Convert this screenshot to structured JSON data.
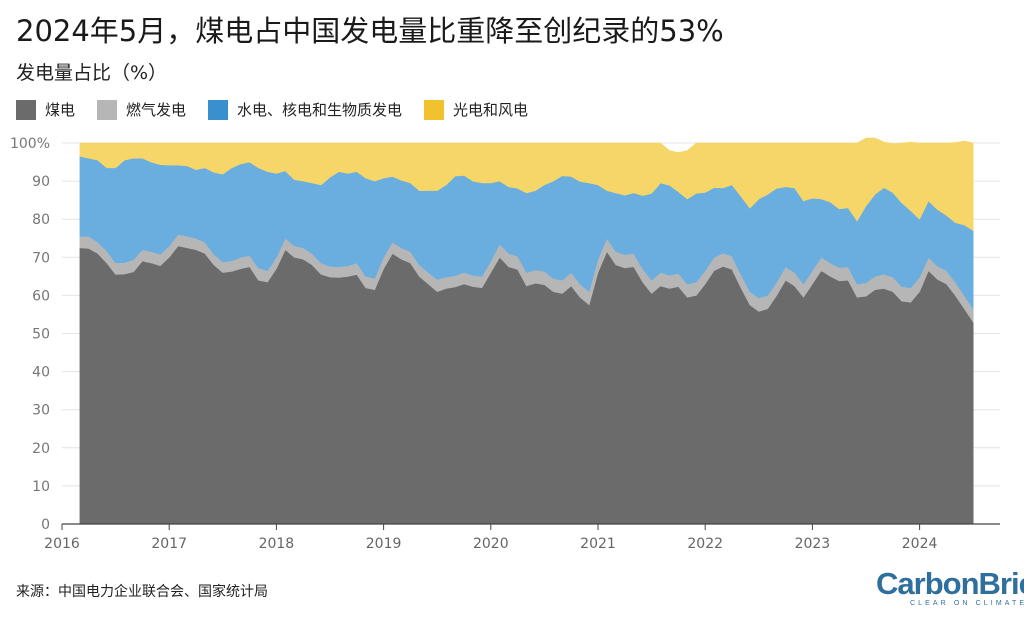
{
  "title": "2024年5月，煤电占中国发电量比重降至创纪录的53%",
  "subtitle": "发电量占比（%）",
  "source": "来源：中国电力企业联合会、国家统计局",
  "logo": {
    "main": "CarbonBrief",
    "tagline": "CLEAR ON CLIMATE"
  },
  "legend": [
    {
      "label": "煤电",
      "color": "#6b6b6b"
    },
    {
      "label": "燃气发电",
      "color": "#b6b6b6"
    },
    {
      "label": "水电、核电和生物质发电",
      "color": "#6aaedf"
    },
    {
      "label": "光电和风电",
      "color": "#f6d668"
    }
  ],
  "chart_data": {
    "type": "area",
    "stacked": true,
    "ylabel": "发电量占比（%）",
    "ylim": [
      0,
      100
    ],
    "yticks": [
      0,
      10,
      20,
      30,
      40,
      50,
      60,
      70,
      80,
      90,
      100
    ],
    "ytick_labels": [
      "0",
      "10",
      "20",
      "30",
      "40",
      "50",
      "60",
      "70",
      "80",
      "90",
      "100%"
    ],
    "xlim": [
      2016,
      2024.75
    ],
    "xticks": [
      2016,
      2017,
      2018,
      2019,
      2020,
      2021,
      2022,
      2023,
      2024
    ],
    "grid": true,
    "legend_position": "top-left",
    "x_start": "2016-03",
    "x_end": "2024-05",
    "x_step": "month",
    "series": [
      {
        "name": "煤电",
        "color": "#6b6b6b",
        "values": [
          72.5,
          72.3,
          71,
          68.5,
          65.5,
          65.6,
          66.2,
          69,
          68.5,
          67.8,
          70,
          73,
          72.5,
          72,
          71,
          68,
          66,
          66.3,
          67,
          67.5,
          64,
          63.5,
          67,
          72,
          70,
          69.5,
          68,
          65.5,
          64.8,
          64.7,
          65,
          65.5,
          62,
          61.5,
          67,
          71,
          69.5,
          68.5,
          65,
          63,
          61,
          61.8,
          62.2,
          63,
          62.3,
          62,
          66,
          70,
          67.5,
          66.8,
          62.5,
          63.2,
          62.8,
          61,
          60.5,
          62.5,
          59.5,
          57.5,
          66,
          71.5,
          68,
          67.2,
          67.5,
          63.5,
          60.5,
          62.5,
          61.8,
          62.3,
          59.5,
          60,
          63,
          66.5,
          67.6,
          66.8,
          62,
          57.5,
          55.8,
          56.5,
          60,
          64,
          62.5,
          59.5,
          63,
          66.5,
          65,
          63.8,
          64,
          59.5,
          59.8,
          61.5,
          61.8,
          61,
          58.5,
          58.2,
          61,
          66.5,
          64.2,
          63,
          60,
          56.5,
          53
        ]
      },
      {
        "name": "燃气发电",
        "color": "#b6b6b6",
        "values": [
          3,
          3.2,
          3,
          3.2,
          3,
          3,
          3.2,
          3,
          3,
          3,
          3,
          3,
          3,
          3,
          3,
          2.8,
          2.8,
          2.8,
          3,
          3,
          3.2,
          3,
          3,
          3,
          3,
          3,
          3,
          3,
          2.8,
          2.8,
          2.8,
          3,
          3,
          3,
          3,
          3,
          3,
          3,
          3,
          3,
          3.2,
          3,
          3,
          3,
          3,
          3,
          3,
          3.5,
          3.5,
          3.5,
          3.5,
          3.5,
          3.5,
          3.5,
          3.5,
          3.5,
          3.5,
          3.5,
          3.5,
          3.5,
          3.5,
          3.5,
          3.5,
          3.5,
          3.5,
          3.5,
          3.5,
          3.5,
          3.5,
          3.5,
          3.5,
          3.5,
          3.5,
          3.5,
          3.5,
          3.5,
          3.5,
          3.5,
          3.5,
          3.5,
          3.5,
          3.5,
          3.5,
          3.5,
          3.5,
          3.5,
          3.5,
          3.5,
          3.5,
          3.5,
          3.8,
          3.8,
          3.8,
          3.8,
          3.8,
          3.5,
          3.5,
          3.5,
          3.5,
          3.5,
          3.5
        ]
      },
      {
        "name": "水电、核电和生物质发电",
        "color": "#6aaedf",
        "values": [
          21,
          20.5,
          21.5,
          21.8,
          25,
          26.9,
          26.6,
          24,
          23.5,
          23.5,
          21.2,
          18.2,
          18.5,
          18,
          19.5,
          21.5,
          23,
          24.4,
          24.5,
          24.5,
          26.3,
          26,
          22,
          17.7,
          17.4,
          17.5,
          18.5,
          20.5,
          23.4,
          25,
          24.2,
          24,
          25.8,
          25.5,
          20.8,
          17.2,
          17.7,
          18,
          19.5,
          21.5,
          23.3,
          24.2,
          26.1,
          25.5,
          24.7,
          24.5,
          20.5,
          16.5,
          17.5,
          17.8,
          20.9,
          20.8,
          22.7,
          25.5,
          27.4,
          25.2,
          26.9,
          28.5,
          19.5,
          12.5,
          15.4,
          15.6,
          15.9,
          19.2,
          22.8,
          23.5,
          23.6,
          21.4,
          22.3,
          23.3,
          20.5,
          18.3,
          17.1,
          18.7,
          20.5,
          21.9,
          26,
          26.5,
          24.6,
          21,
          22.2,
          21.8,
          19,
          15.3,
          16,
          15.4,
          15.5,
          16.5,
          20.2,
          21.5,
          22.7,
          22.2,
          22,
          20.2,
          15.2,
          14.8,
          14.8,
          14.5,
          15.6,
          18.5,
          20.5
        ]
      },
      {
        "name": "光电和风电",
        "color": "#f6d668",
        "values": [
          3.5,
          4,
          4.5,
          6.5,
          6.5,
          4.5,
          4,
          4,
          5,
          5.7,
          5.8,
          5.8,
          6,
          7,
          6.5,
          7.7,
          8.2,
          6.5,
          5.5,
          5,
          6.5,
          7.5,
          8,
          7.3,
          9.6,
          10,
          10.5,
          11,
          9,
          7.5,
          8,
          7.5,
          9.2,
          10,
          9.2,
          8.8,
          9.8,
          10.5,
          12.5,
          12.5,
          12.5,
          11,
          8.7,
          8.5,
          10,
          10.5,
          10.5,
          10,
          11.5,
          11.9,
          13.1,
          12.5,
          11,
          10,
          8.6,
          8.8,
          10.1,
          10.5,
          11,
          12.5,
          13.1,
          13.7,
          13.1,
          13.8,
          13.2,
          10.5,
          9.1,
          10.3,
          12.7,
          13.2,
          13,
          11.7,
          11.8,
          11,
          14,
          17.1,
          14.7,
          13.5,
          11.9,
          11.5,
          11.8,
          15.2,
          14.5,
          14.7,
          15.5,
          17.3,
          17,
          20.5,
          17.8,
          14.8,
          12,
          12.8,
          15.7,
          18,
          20,
          15.2,
          17.5,
          19,
          21,
          22,
          23
        ]
      }
    ]
  }
}
